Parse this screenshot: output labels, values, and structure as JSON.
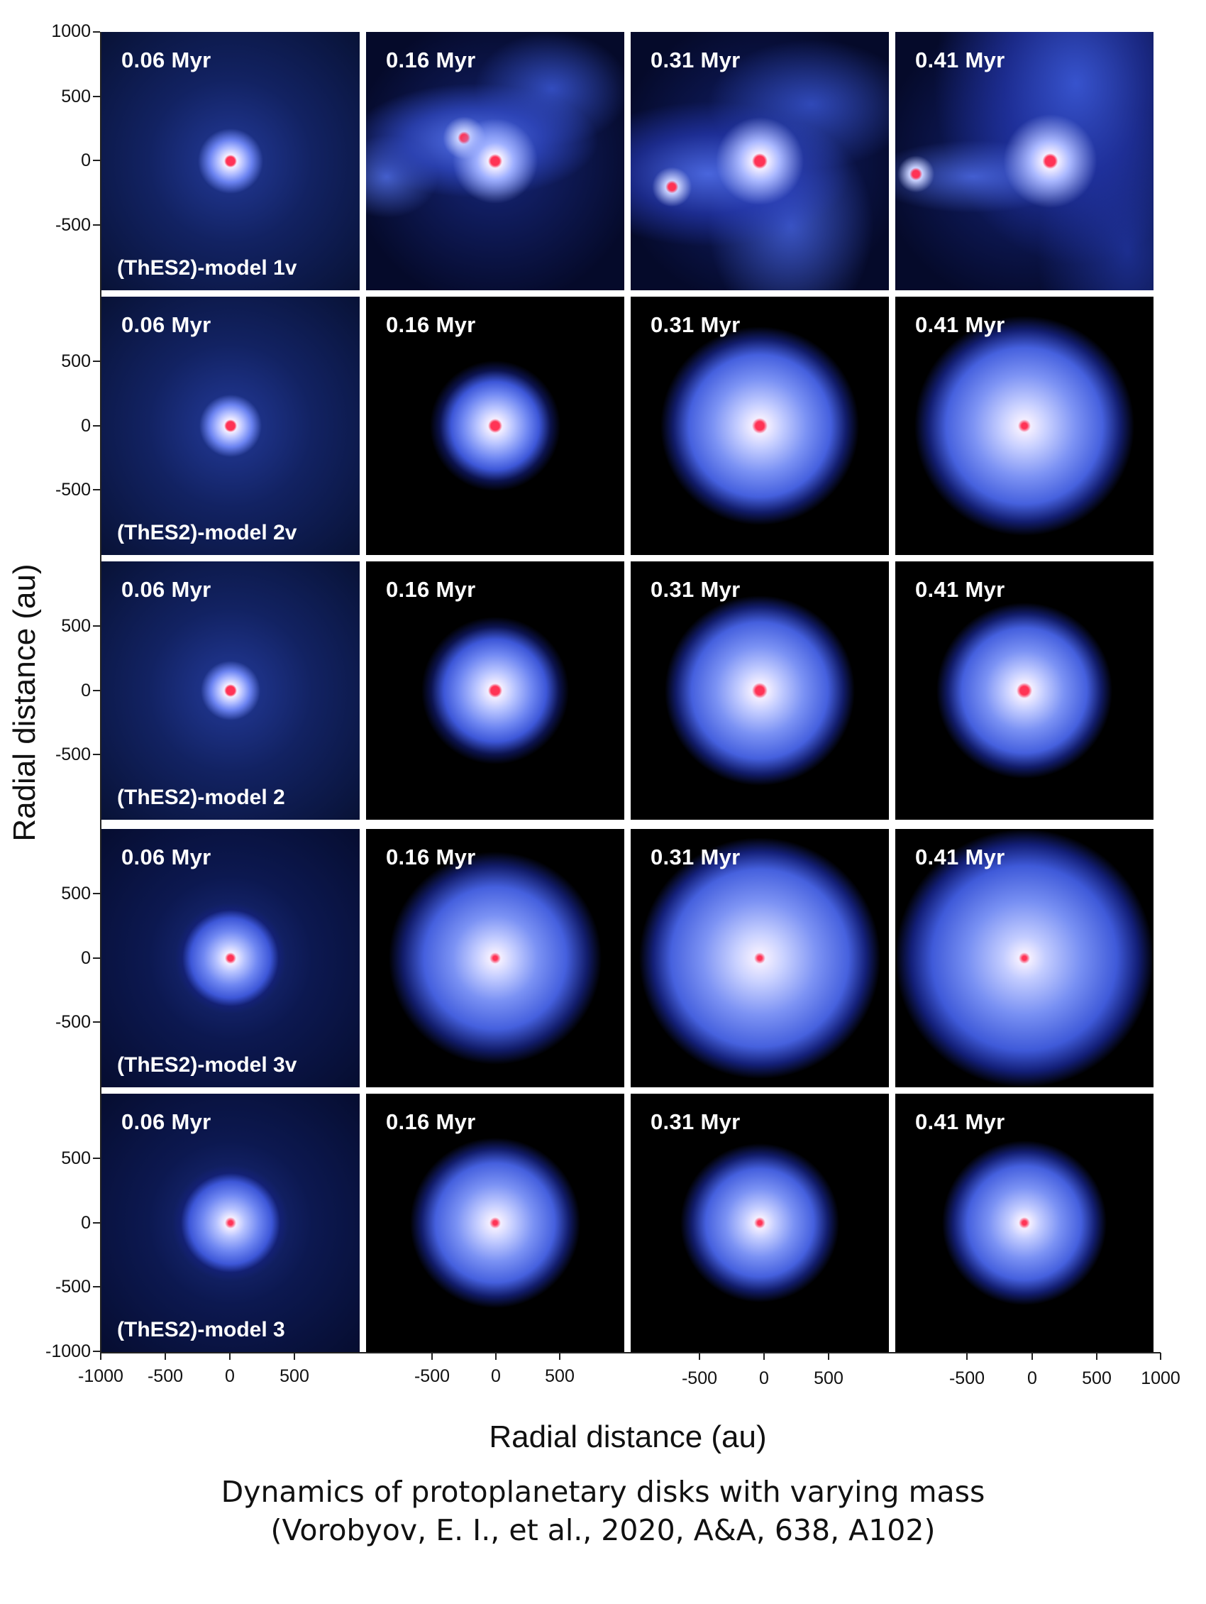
{
  "figure": {
    "y_axis_title": "Radial distance (au)",
    "x_axis_title": "Radial distance (au)",
    "caption_line1": "Dynamics of protoplanetary disks with varying mass",
    "caption_line2": "(Vorobyov, E. I., et al., 2020, A&A, 638, A102)"
  },
  "y_ticks": {
    "row1": [
      "1000",
      "500",
      "0",
      "-500"
    ],
    "row2": [
      "500",
      "0",
      "-500"
    ],
    "row3": [
      "500",
      "0",
      "-500"
    ],
    "row4": [
      "500",
      "0",
      "-500"
    ],
    "row5": [
      "500",
      "0",
      "-500",
      "-1000"
    ]
  },
  "x_ticks": {
    "col1": [
      "-1000",
      "-500",
      "0",
      "500"
    ],
    "col2": [
      "-500",
      "0",
      "500"
    ],
    "col3": [
      "-500",
      "0",
      "500"
    ],
    "col4": [
      "-500",
      "0",
      "500",
      "1000"
    ]
  },
  "rows": [
    {
      "model": "(ThES2)-model 1v",
      "times": [
        "0.06 Myr",
        "0.16 Myr",
        "0.31 Myr",
        "0.41 Myr"
      ]
    },
    {
      "model": "(ThES2)-model 2v",
      "times": [
        "0.06 Myr",
        "0.16 Myr",
        "0.31 Myr",
        "0.41 Myr"
      ]
    },
    {
      "model": "(ThES2)-model 2",
      "times": [
        "0.06 Myr",
        "0.16 Myr",
        "0.31 Myr",
        "0.41 Myr"
      ]
    },
    {
      "model": "(ThES2)-model 3v",
      "times": [
        "0.06 Myr",
        "0.16 Myr",
        "0.31 Myr",
        "0.41 Myr"
      ]
    },
    {
      "model": "(ThES2)-model 3",
      "times": [
        "0.06 Myr",
        "0.16 Myr",
        "0.31 Myr",
        "0.41 Myr"
      ]
    }
  ],
  "colors": {
    "disk_core": "#f2eeff",
    "disk_mid": "#5a74ea",
    "disk_outer": "#1e35b8",
    "star": "#e8324a",
    "background": "#000000"
  }
}
